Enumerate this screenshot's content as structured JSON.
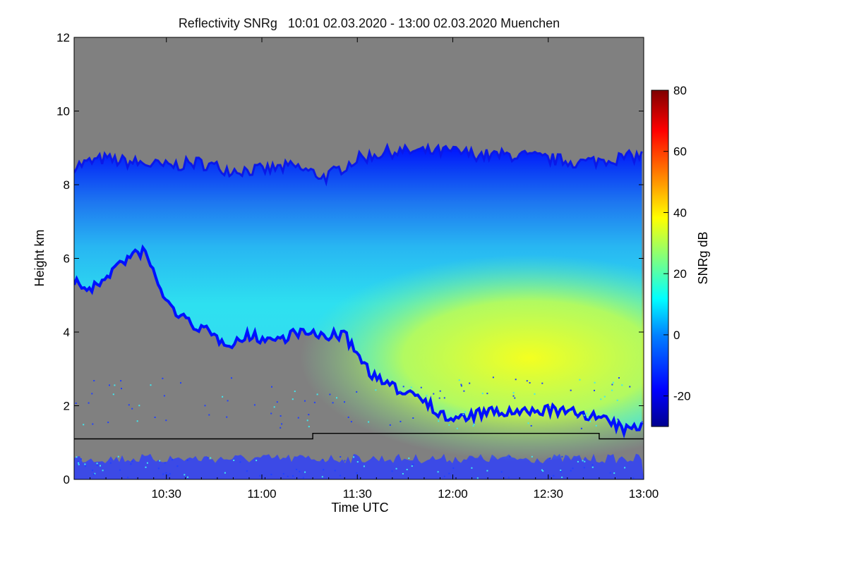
{
  "chart_data": {
    "type": "heatmap",
    "title": "Reflectivity SNRg   10:01 02.03.2020 - 13:00 02.03.2020 Muenchen",
    "xlabel": "Time UTC",
    "ylabel": "Height km",
    "x_range_minutes_utc": [
      601,
      780
    ],
    "x_ticks": [
      {
        "label": "10:30",
        "minute": 630
      },
      {
        "label": "11:00",
        "minute": 660
      },
      {
        "label": "11:30",
        "minute": 690
      },
      {
        "label": "12:00",
        "minute": 720
      },
      {
        "label": "12:30",
        "minute": 750
      },
      {
        "label": "13:00",
        "minute": 780
      }
    ],
    "ylim": [
      0,
      12
    ],
    "y_ticks": [
      "0",
      "2",
      "4",
      "6",
      "8",
      "10",
      "12"
    ],
    "no_data_color": "#808080",
    "colorbar": {
      "label": "SNRg dB",
      "range": [
        -30,
        80
      ],
      "ticks": [
        "-20",
        "0",
        "20",
        "40",
        "60",
        "80"
      ],
      "colors": [
        "#00008f",
        "#0000ff",
        "#007fff",
        "#00ffff",
        "#7fff7f",
        "#ffff00",
        "#ff7f00",
        "#ff0000",
        "#7f0000"
      ]
    },
    "cloud_top_km": [
      [
        601,
        8.5
      ],
      [
        610,
        8.7
      ],
      [
        620,
        8.6
      ],
      [
        630,
        8.5
      ],
      [
        640,
        8.6
      ],
      [
        650,
        8.4
      ],
      [
        660,
        8.4
      ],
      [
        670,
        8.5
      ],
      [
        680,
        8.2
      ],
      [
        690,
        8.7
      ],
      [
        700,
        8.9
      ],
      [
        710,
        8.9
      ],
      [
        720,
        8.9
      ],
      [
        730,
        8.8
      ],
      [
        740,
        8.8
      ],
      [
        750,
        8.7
      ],
      [
        760,
        8.6
      ],
      [
        770,
        8.7
      ],
      [
        780,
        8.8
      ]
    ],
    "cloud_base_km": [
      [
        601,
        5.5
      ],
      [
        606,
        5.2
      ],
      [
        611,
        5.6
      ],
      [
        616,
        6.0
      ],
      [
        623,
        6.3
      ],
      [
        626,
        5.7
      ],
      [
        630,
        4.9
      ],
      [
        636,
        4.4
      ],
      [
        641,
        4.2
      ],
      [
        646,
        3.9
      ],
      [
        651,
        3.8
      ],
      [
        656,
        4.0
      ],
      [
        661,
        3.9
      ],
      [
        666,
        3.9
      ],
      [
        671,
        4.1
      ],
      [
        676,
        4.0
      ],
      [
        681,
        4.0
      ],
      [
        686,
        4.0
      ],
      [
        690,
        3.5
      ],
      [
        695,
        2.9
      ],
      [
        700,
        2.6
      ],
      [
        705,
        2.5
      ],
      [
        710,
        2.4
      ],
      [
        715,
        1.9
      ],
      [
        720,
        1.7
      ],
      [
        725,
        1.8
      ],
      [
        730,
        1.9
      ],
      [
        735,
        1.9
      ],
      [
        740,
        1.9
      ],
      [
        745,
        1.9
      ],
      [
        750,
        2.0
      ],
      [
        755,
        1.9
      ],
      [
        760,
        1.9
      ],
      [
        765,
        1.8
      ],
      [
        770,
        1.6
      ],
      [
        775,
        1.4
      ],
      [
        780,
        1.6
      ]
    ],
    "core_snr_db": [
      [
        601,
        5
      ],
      [
        620,
        8
      ],
      [
        640,
        10
      ],
      [
        660,
        12
      ],
      [
        680,
        14
      ],
      [
        690,
        25
      ],
      [
        700,
        32
      ],
      [
        710,
        35
      ],
      [
        720,
        33
      ],
      [
        730,
        32
      ],
      [
        740,
        34
      ],
      [
        750,
        38
      ],
      [
        760,
        36
      ],
      [
        770,
        33
      ],
      [
        780,
        30
      ]
    ],
    "reference_line_km": [
      [
        601,
        1.1
      ],
      [
        676,
        1.1
      ],
      [
        676,
        1.25
      ],
      [
        766,
        1.25
      ],
      [
        766,
        1.1
      ],
      [
        780,
        1.1
      ]
    ],
    "ground_clutter_top_km": 0.7
  }
}
